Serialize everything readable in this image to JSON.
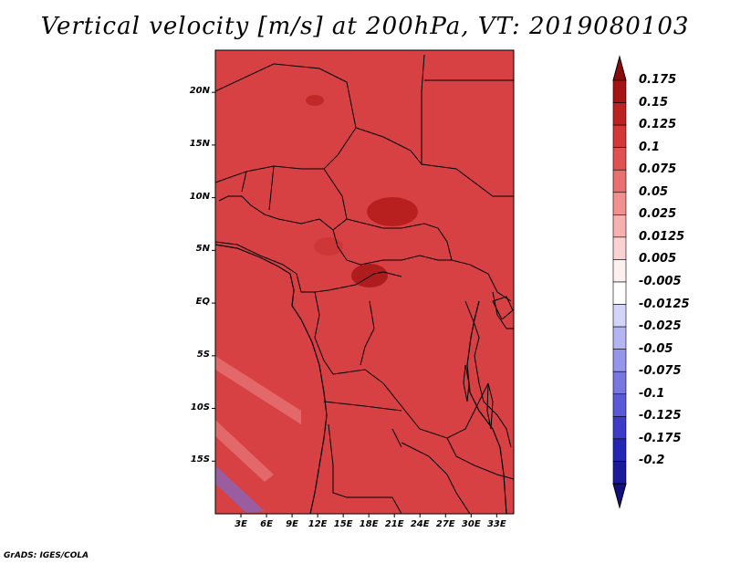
{
  "title": "Vertical velocity [m/s] at 200hPa, VT: 2019080103",
  "footer": "GrADS: IGES/COLA",
  "map": {
    "lon_range": [
      0,
      35
    ],
    "lat_range": [
      -20,
      24
    ],
    "y_ticks": [
      "20N",
      "15N",
      "10N",
      "5N",
      "EQ",
      "5S",
      "10S",
      "15S"
    ],
    "x_ticks": [
      "3E",
      "6E",
      "9E",
      "12E",
      "15E",
      "18E",
      "21E",
      "24E",
      "27E",
      "30E",
      "33E"
    ]
  },
  "colorbar": {
    "labels": [
      "0.175",
      "0.15",
      "0.125",
      "0.1",
      "0.075",
      "0.05",
      "0.025",
      "0.0125",
      "0.005",
      "-0.005",
      "-0.0125",
      "-0.025",
      "-0.05",
      "-0.075",
      "-0.1",
      "-0.125",
      "-0.175",
      "-0.2"
    ],
    "colors": [
      "#8b0a0a",
      "#a51414",
      "#bd2222",
      "#d23838",
      "#e05252",
      "#e97070",
      "#f29090",
      "#f7b0b0",
      "#fbd2d2",
      "#fff0f0",
      "#ffffff",
      "#d4d4fa",
      "#b4b4f2",
      "#9595ea",
      "#7777e0",
      "#5a5ad6",
      "#3c3cc8",
      "#2626b4",
      "#1a1a9a",
      "#10107e"
    ]
  }
}
